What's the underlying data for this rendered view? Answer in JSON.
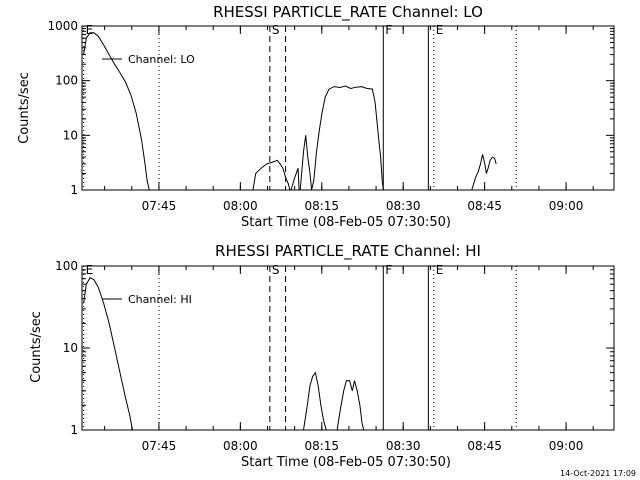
{
  "footer": "14-Oct-2021 17:09",
  "chart_data": [
    {
      "type": "line",
      "title": "RHESSI PARTICLE_RATE Channel: LO",
      "xlabel": "Start Time (08-Feb-05 07:30:50)",
      "ylabel": "Counts/sec",
      "x_unit": "minutes after 07:30:50",
      "xlim": [
        0,
        98
      ],
      "ylim": [
        1,
        1000
      ],
      "yscale": "log",
      "grid": false,
      "x_ticks": [
        {
          "label": "07:45",
          "x": 14.17
        },
        {
          "label": "08:00",
          "x": 29.17
        },
        {
          "label": "08:15",
          "x": 44.17
        },
        {
          "label": "08:30",
          "x": 59.17
        },
        {
          "label": "08:45",
          "x": 74.17
        },
        {
          "label": "09:00",
          "x": 89.17
        }
      ],
      "y_ticks": [
        {
          "label": "1",
          "y": 1
        },
        {
          "label": "10",
          "y": 10
        },
        {
          "label": "100",
          "y": 100
        },
        {
          "label": "1000",
          "y": 1000
        }
      ],
      "legend": {
        "label": "Channel: LO",
        "position": "top-left"
      },
      "markers": [
        {
          "label": "E",
          "x": 0.3,
          "style": "dotted"
        },
        {
          "label": "",
          "x": 14.2,
          "style": "dotted"
        },
        {
          "label": "S",
          "x": 34.6,
          "style": "dashed"
        },
        {
          "label": "",
          "x": 37.5,
          "style": "dashed"
        },
        {
          "label": "F",
          "x": 55.5,
          "style": "solid"
        },
        {
          "label": "",
          "x": 63.8,
          "style": "solid"
        },
        {
          "label": "E",
          "x": 64.8,
          "style": "dotted"
        },
        {
          "label": "",
          "x": 80.0,
          "style": "dotted"
        }
      ],
      "series": [
        {
          "name": "Channel: LO",
          "segments": [
            [
              [
                0.3,
                300
              ],
              [
                0.8,
                600
              ],
              [
                1.5,
                750
              ],
              [
                2.2,
                750
              ],
              [
                3,
                650
              ],
              [
                4,
                450
              ],
              [
                5,
                300
              ],
              [
                6,
                200
              ],
              [
                7,
                140
              ],
              [
                8,
                95
              ],
              [
                9,
                55
              ],
              [
                10,
                25
              ],
              [
                11,
                8
              ],
              [
                11.6,
                3
              ],
              [
                12,
                1.5
              ],
              [
                12.4,
                1
              ]
            ],
            [
              [
                31.5,
                1
              ],
              [
                32,
                2
              ],
              [
                33,
                2.5
              ],
              [
                34,
                3
              ],
              [
                35,
                3.2
              ],
              [
                36,
                3.5
              ],
              [
                36.5,
                3
              ],
              [
                37,
                2.5
              ],
              [
                37.5,
                1.7
              ],
              [
                38,
                1.3
              ],
              [
                38.3,
                1
              ]
            ],
            [
              [
                38.5,
                1
              ],
              [
                39.2,
                1.7
              ],
              [
                39.8,
                2.5
              ],
              [
                40,
                1
              ],
              [
                40.2,
                1
              ],
              [
                40.8,
                5
              ],
              [
                41.2,
                10
              ],
              [
                41.6,
                4
              ],
              [
                42,
                2
              ],
              [
                42.3,
                1
              ],
              [
                42.7,
                1.5
              ],
              [
                43.2,
                5
              ],
              [
                43.7,
                12
              ],
              [
                44.2,
                25
              ],
              [
                44.8,
                50
              ],
              [
                45.5,
                70
              ],
              [
                46.5,
                78
              ],
              [
                47.5,
                75
              ],
              [
                48.5,
                80
              ],
              [
                49.5,
                72
              ],
              [
                50.5,
                76
              ],
              [
                51.5,
                78
              ],
              [
                52.5,
                72
              ],
              [
                53.5,
                70
              ],
              [
                54,
                40
              ],
              [
                54.5,
                12
              ],
              [
                55,
                4
              ],
              [
                55.3,
                1.5
              ],
              [
                55.5,
                1
              ]
            ],
            [
              [
                71.8,
                1
              ],
              [
                72.5,
                1.7
              ],
              [
                73,
                2.2
              ],
              [
                73.4,
                3
              ],
              [
                73.8,
                4.5
              ],
              [
                74.2,
                3
              ],
              [
                74.5,
                2
              ],
              [
                74.8,
                2.5
              ],
              [
                75.2,
                3.5
              ],
              [
                75.6,
                4
              ],
              [
                76,
                3.8
              ],
              [
                76.3,
                3
              ]
            ]
          ]
        }
      ]
    },
    {
      "type": "line",
      "title": "RHESSI PARTICLE_RATE Channel: HI",
      "xlabel": "Start Time (08-Feb-05 07:30:50)",
      "ylabel": "Counts/sec",
      "x_unit": "minutes after 07:30:50",
      "xlim": [
        0,
        98
      ],
      "ylim": [
        1,
        100
      ],
      "yscale": "log",
      "grid": false,
      "x_ticks": [
        {
          "label": "07:45",
          "x": 14.17
        },
        {
          "label": "08:00",
          "x": 29.17
        },
        {
          "label": "08:15",
          "x": 44.17
        },
        {
          "label": "08:30",
          "x": 59.17
        },
        {
          "label": "08:45",
          "x": 74.17
        },
        {
          "label": "09:00",
          "x": 89.17
        }
      ],
      "y_ticks": [
        {
          "label": "1",
          "y": 1
        },
        {
          "label": "10",
          "y": 10
        },
        {
          "label": "100",
          "y": 100
        }
      ],
      "legend": {
        "label": "Channel: HI",
        "position": "top-left"
      },
      "markers": [
        {
          "label": "E",
          "x": 0.3,
          "style": "dotted"
        },
        {
          "label": "",
          "x": 14.2,
          "style": "dotted"
        },
        {
          "label": "S",
          "x": 34.6,
          "style": "dashed"
        },
        {
          "label": "",
          "x": 37.5,
          "style": "dashed"
        },
        {
          "label": "F",
          "x": 55.5,
          "style": "solid"
        },
        {
          "label": "",
          "x": 63.8,
          "style": "solid"
        },
        {
          "label": "E",
          "x": 64.8,
          "style": "dotted"
        },
        {
          "label": "",
          "x": 80.0,
          "style": "dotted"
        }
      ],
      "series": [
        {
          "name": "Channel: HI",
          "segments": [
            [
              [
                0.3,
                35
              ],
              [
                0.8,
                60
              ],
              [
                1.5,
                72
              ],
              [
                2.2,
                68
              ],
              [
                3,
                55
              ],
              [
                4,
                35
              ],
              [
                5,
                20
              ],
              [
                6,
                10
              ],
              [
                7,
                5
              ],
              [
                8,
                2.5
              ],
              [
                8.8,
                1.5
              ],
              [
                9.3,
                1
              ]
            ],
            [
              [
                40.8,
                1
              ],
              [
                41.5,
                2
              ],
              [
                42,
                3.5
              ],
              [
                42.5,
                4.5
              ],
              [
                43,
                5
              ],
              [
                43.5,
                3.5
              ],
              [
                44,
                2
              ],
              [
                44.5,
                1.3
              ],
              [
                45,
                1
              ]
            ],
            [
              [
                47,
                1
              ],
              [
                47.6,
                1.8
              ],
              [
                48.2,
                3
              ],
              [
                48.7,
                4
              ],
              [
                49.3,
                4
              ],
              [
                49.8,
                3
              ],
              [
                50.2,
                4
              ],
              [
                50.7,
                3
              ],
              [
                51.2,
                2
              ],
              [
                51.6,
                1.2
              ],
              [
                51.9,
                1
              ]
            ]
          ]
        }
      ]
    }
  ]
}
